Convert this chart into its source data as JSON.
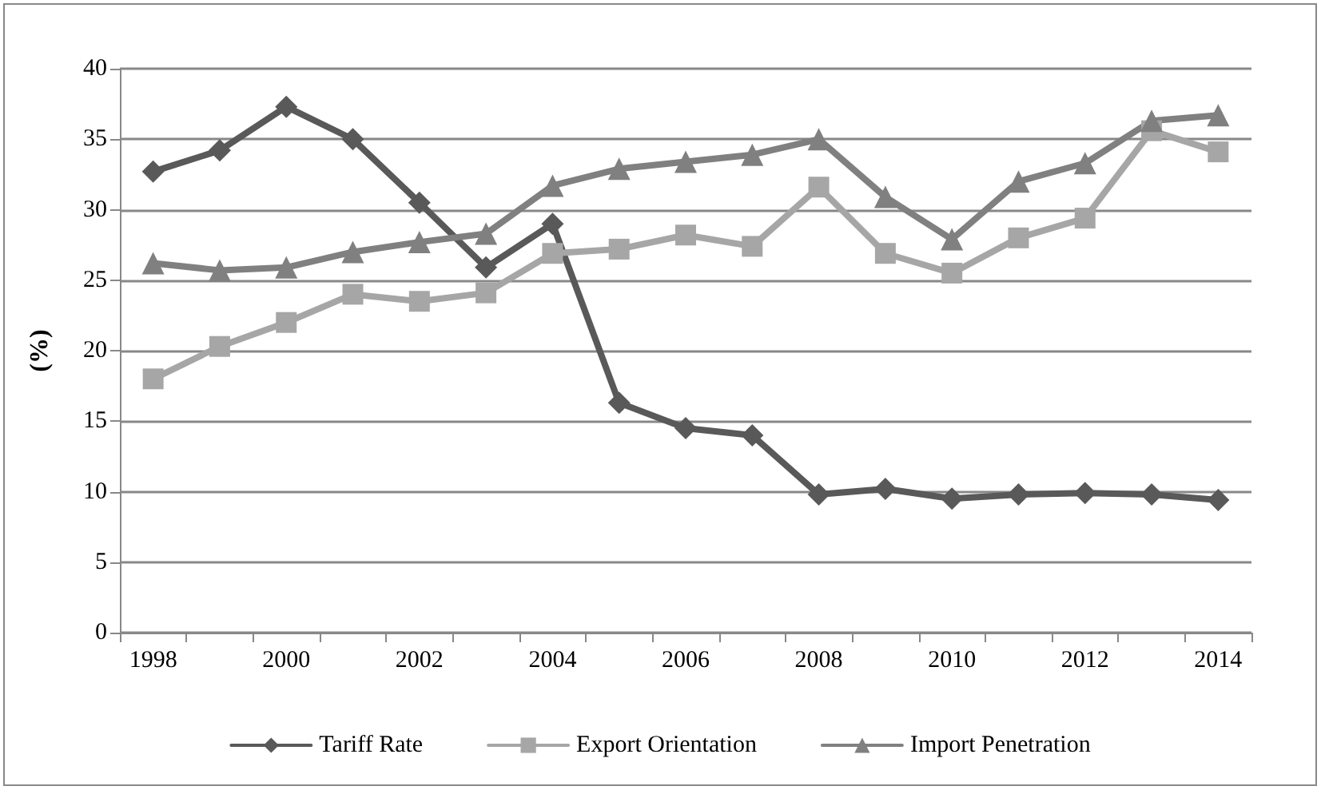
{
  "chart_data": {
    "type": "line",
    "ylabel": "(%)",
    "categories": [
      "1998",
      null,
      "2000",
      null,
      "2002",
      null,
      "2004",
      null,
      "2006",
      null,
      "2008",
      null,
      "2010",
      null,
      "2012",
      null,
      "2014"
    ],
    "series": [
      {
        "name": "Tariff Rate",
        "color": "#595959",
        "marker": "diamond",
        "values": [
          32.7,
          34.2,
          37.3,
          35,
          30.5,
          25.9,
          29,
          16.3,
          14.5,
          14,
          9.8,
          10.2,
          9.5,
          9.8,
          9.9,
          9.8,
          9.4
        ]
      },
      {
        "name": "Export Orientation",
        "color": "#a6a6a6",
        "marker": "square",
        "values": [
          18,
          20.3,
          22,
          24,
          23.5,
          24.1,
          26.9,
          27.2,
          28.2,
          27.4,
          31.6,
          26.9,
          25.5,
          28,
          29.4,
          35.6,
          34.1
        ]
      },
      {
        "name": "Import Penetration",
        "color": "#808080",
        "marker": "triangle",
        "values": [
          26.2,
          25.7,
          25.9,
          27,
          27.7,
          28.3,
          31.7,
          32.9,
          33.4,
          33.9,
          35,
          30.9,
          27.9,
          32,
          33.3,
          36.3,
          36.7
        ]
      }
    ],
    "ylim": [
      0,
      40
    ],
    "yticks": [
      0,
      5,
      10,
      15,
      20,
      25,
      30,
      35,
      40
    ],
    "grid": "y",
    "legend": "bottom",
    "line_style": "solid"
  }
}
